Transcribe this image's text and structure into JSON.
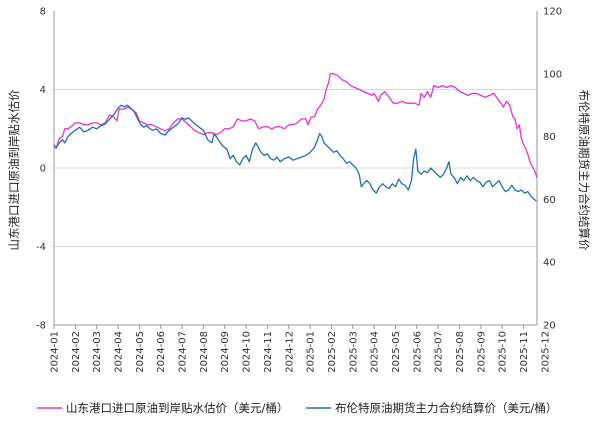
{
  "chart_data": {
    "type": "line",
    "title": "",
    "ylabel_left": "山东港口进口原油到岸贴水估价",
    "ylabel_right": "布伦特原油期货主力合约结算价",
    "ylim_left": [
      -8,
      8
    ],
    "yticks_left": [
      "-8",
      "-4",
      "0",
      "4",
      "8"
    ],
    "ylim_right": [
      20,
      120
    ],
    "yticks_right": [
      "20",
      "40",
      "60",
      "80",
      "100",
      "120"
    ],
    "xlim": [
      "2024-01",
      "2025-12.6"
    ],
    "xticks": [
      "2024-01",
      "2024-02",
      "2024-03",
      "2024-04",
      "2024-05",
      "2024-06",
      "2024-07",
      "2024-08",
      "2024-09",
      "2024-10",
      "2024-11",
      "2024-12",
      "2025-01",
      "2025-02",
      "2025-03",
      "2025-04",
      "2025-05",
      "2025-06",
      "2025-07",
      "2025-08",
      "2025-09",
      "2025-10",
      "2025-11",
      "2025-12"
    ],
    "grid": true,
    "legend_position": "bottom",
    "series": [
      {
        "name": "山东港口进口原油到岸贴水估价（美元/桶）",
        "axis": "left",
        "color": "#e933d8",
        "points": [
          [
            0.0,
            1.2
          ],
          [
            0.1,
            1.0
          ],
          [
            0.25,
            1.5
          ],
          [
            0.4,
            1.6
          ],
          [
            0.5,
            2.0
          ],
          [
            0.65,
            2.0
          ],
          [
            0.8,
            2.1
          ],
          [
            1.0,
            2.3
          ],
          [
            1.2,
            2.3
          ],
          [
            1.4,
            2.2
          ],
          [
            1.6,
            2.2
          ],
          [
            1.8,
            2.3
          ],
          [
            2.0,
            2.3
          ],
          [
            2.2,
            2.2
          ],
          [
            2.4,
            2.3
          ],
          [
            2.6,
            2.7
          ],
          [
            2.8,
            2.6
          ],
          [
            2.95,
            2.4
          ],
          [
            3.05,
            3.0
          ],
          [
            3.25,
            3.0
          ],
          [
            3.45,
            3.1
          ],
          [
            3.65,
            3.0
          ],
          [
            3.85,
            2.8
          ],
          [
            4.0,
            2.4
          ],
          [
            4.2,
            2.3
          ],
          [
            4.4,
            2.2
          ],
          [
            4.6,
            2.2
          ],
          [
            4.8,
            2.1
          ],
          [
            5.0,
            2.0
          ],
          [
            5.2,
            1.9
          ],
          [
            5.4,
            2.0
          ],
          [
            5.6,
            2.3
          ],
          [
            5.8,
            2.5
          ],
          [
            6.0,
            2.5
          ],
          [
            6.2,
            2.3
          ],
          [
            6.4,
            2.1
          ],
          [
            6.6,
            1.9
          ],
          [
            6.8,
            1.8
          ],
          [
            7.0,
            1.7
          ],
          [
            7.2,
            1.8
          ],
          [
            7.4,
            1.8
          ],
          [
            7.6,
            1.7
          ],
          [
            7.8,
            1.8
          ],
          [
            8.0,
            2.0
          ],
          [
            8.2,
            2.0
          ],
          [
            8.4,
            2.1
          ],
          [
            8.6,
            2.5
          ],
          [
            8.8,
            2.4
          ],
          [
            9.0,
            2.4
          ],
          [
            9.2,
            2.5
          ],
          [
            9.4,
            2.4
          ],
          [
            9.6,
            2.0
          ],
          [
            9.8,
            2.1
          ],
          [
            10.0,
            2.1
          ],
          [
            10.2,
            2.0
          ],
          [
            10.4,
            2.1
          ],
          [
            10.6,
            2.1
          ],
          [
            10.8,
            2.0
          ],
          [
            11.0,
            2.2
          ],
          [
            11.2,
            2.2
          ],
          [
            11.4,
            2.3
          ],
          [
            11.6,
            2.5
          ],
          [
            11.8,
            2.5
          ],
          [
            11.9,
            2.2
          ],
          [
            12.05,
            2.6
          ],
          [
            12.2,
            2.6
          ],
          [
            12.35,
            3.0
          ],
          [
            12.5,
            3.2
          ],
          [
            12.65,
            3.5
          ],
          [
            12.75,
            4.0
          ],
          [
            12.85,
            4.3
          ],
          [
            12.95,
            4.8
          ],
          [
            13.1,
            4.8
          ],
          [
            13.3,
            4.7
          ],
          [
            13.5,
            4.5
          ],
          [
            13.7,
            4.4
          ],
          [
            13.9,
            4.2
          ],
          [
            14.1,
            4.1
          ],
          [
            14.3,
            4.0
          ],
          [
            14.5,
            3.9
          ],
          [
            14.7,
            3.8
          ],
          [
            14.9,
            3.7
          ],
          [
            15.0,
            3.8
          ],
          [
            15.2,
            3.4
          ],
          [
            15.3,
            3.7
          ],
          [
            15.5,
            3.9
          ],
          [
            15.7,
            3.6
          ],
          [
            15.9,
            3.3
          ],
          [
            16.1,
            3.3
          ],
          [
            16.3,
            3.4
          ],
          [
            16.5,
            3.3
          ],
          [
            16.7,
            3.3
          ],
          [
            16.9,
            3.3
          ],
          [
            17.1,
            3.2
          ],
          [
            17.2,
            3.8
          ],
          [
            17.35,
            3.6
          ],
          [
            17.5,
            3.9
          ],
          [
            17.65,
            3.6
          ],
          [
            17.8,
            4.2
          ],
          [
            18.0,
            4.1
          ],
          [
            18.2,
            4.2
          ],
          [
            18.4,
            4.1
          ],
          [
            18.6,
            4.2
          ],
          [
            18.8,
            4.1
          ],
          [
            19.0,
            3.9
          ],
          [
            19.2,
            3.8
          ],
          [
            19.4,
            3.7
          ],
          [
            19.6,
            3.8
          ],
          [
            19.8,
            3.8
          ],
          [
            20.0,
            3.7
          ],
          [
            20.2,
            3.6
          ],
          [
            20.4,
            3.7
          ],
          [
            20.6,
            3.8
          ],
          [
            20.8,
            3.5
          ],
          [
            20.95,
            3.3
          ],
          [
            21.05,
            3.1
          ],
          [
            21.2,
            3.4
          ],
          [
            21.35,
            3.2
          ],
          [
            21.5,
            2.6
          ],
          [
            21.6,
            2.5
          ],
          [
            21.7,
            2.0
          ],
          [
            21.8,
            2.2
          ],
          [
            21.9,
            1.5
          ],
          [
            22.0,
            1.2
          ],
          [
            22.1,
            1.0
          ],
          [
            22.2,
            0.7
          ],
          [
            22.3,
            0.3
          ],
          [
            22.4,
            0.1
          ],
          [
            22.5,
            -0.1
          ],
          [
            22.58,
            -0.3
          ],
          [
            22.63,
            -0.5
          ]
        ]
      },
      {
        "name": "布伦特原油期货主力合约结算价（美元/桶）",
        "axis": "right",
        "color": "#1f6fc6",
        "points": [
          [
            0.0,
            77
          ],
          [
            0.1,
            76.5
          ],
          [
            0.25,
            78
          ],
          [
            0.4,
            79
          ],
          [
            0.5,
            78
          ],
          [
            0.65,
            80
          ],
          [
            0.8,
            81
          ],
          [
            1.0,
            82
          ],
          [
            1.2,
            83
          ],
          [
            1.4,
            81.5
          ],
          [
            1.6,
            82
          ],
          [
            1.8,
            83
          ],
          [
            2.0,
            82.5
          ],
          [
            2.2,
            83.5
          ],
          [
            2.4,
            84
          ],
          [
            2.6,
            85.5
          ],
          [
            2.8,
            87
          ],
          [
            3.0,
            89
          ],
          [
            3.15,
            90
          ],
          [
            3.3,
            89.5
          ],
          [
            3.45,
            90
          ],
          [
            3.6,
            89
          ],
          [
            3.75,
            88
          ],
          [
            3.9,
            86
          ],
          [
            4.05,
            84
          ],
          [
            4.2,
            83
          ],
          [
            4.35,
            83.5
          ],
          [
            4.5,
            82.5
          ],
          [
            4.65,
            82
          ],
          [
            4.8,
            82.5
          ],
          [
            5.0,
            81
          ],
          [
            5.2,
            80.5
          ],
          [
            5.4,
            82
          ],
          [
            5.6,
            83
          ],
          [
            5.8,
            84
          ],
          [
            6.0,
            86
          ],
          [
            6.15,
            85.5
          ],
          [
            6.3,
            86
          ],
          [
            6.45,
            85
          ],
          [
            6.6,
            84
          ],
          [
            6.8,
            83
          ],
          [
            7.0,
            82
          ],
          [
            7.2,
            79
          ],
          [
            7.4,
            78
          ],
          [
            7.5,
            81
          ],
          [
            7.7,
            79
          ],
          [
            7.9,
            77
          ],
          [
            8.1,
            76
          ],
          [
            8.25,
            73
          ],
          [
            8.4,
            74
          ],
          [
            8.55,
            72
          ],
          [
            8.7,
            71
          ],
          [
            8.85,
            73
          ],
          [
            9.0,
            74
          ],
          [
            9.15,
            72
          ],
          [
            9.3,
            76
          ],
          [
            9.45,
            78
          ],
          [
            9.55,
            77
          ],
          [
            9.7,
            75
          ],
          [
            9.85,
            74
          ],
          [
            10.0,
            74.5
          ],
          [
            10.15,
            73
          ],
          [
            10.3,
            72.5
          ],
          [
            10.45,
            73.5
          ],
          [
            10.6,
            72
          ],
          [
            10.8,
            73
          ],
          [
            11.0,
            73.5
          ],
          [
            11.2,
            72.5
          ],
          [
            11.4,
            73
          ],
          [
            11.6,
            73.5
          ],
          [
            11.8,
            74
          ],
          [
            12.0,
            75
          ],
          [
            12.2,
            76.5
          ],
          [
            12.35,
            79
          ],
          [
            12.45,
            81
          ],
          [
            12.55,
            80
          ],
          [
            12.65,
            78
          ],
          [
            12.8,
            77
          ],
          [
            12.95,
            76
          ],
          [
            13.1,
            75
          ],
          [
            13.25,
            75.5
          ],
          [
            13.4,
            74
          ],
          [
            13.55,
            73
          ],
          [
            13.7,
            71.5
          ],
          [
            13.85,
            72
          ],
          [
            14.0,
            71
          ],
          [
            14.15,
            70
          ],
          [
            14.3,
            68
          ],
          [
            14.4,
            64
          ],
          [
            14.5,
            65
          ],
          [
            14.65,
            66
          ],
          [
            14.8,
            65
          ],
          [
            14.95,
            63
          ],
          [
            15.1,
            62
          ],
          [
            15.25,
            64
          ],
          [
            15.4,
            65
          ],
          [
            15.55,
            64
          ],
          [
            15.7,
            63.5
          ],
          [
            15.85,
            65
          ],
          [
            16.0,
            64
          ],
          [
            16.15,
            66.5
          ],
          [
            16.3,
            65
          ],
          [
            16.45,
            64.5
          ],
          [
            16.6,
            63
          ],
          [
            16.75,
            66
          ],
          [
            16.85,
            73
          ],
          [
            16.95,
            76
          ],
          [
            17.05,
            69
          ],
          [
            17.2,
            68
          ],
          [
            17.35,
            69
          ],
          [
            17.5,
            68.5
          ],
          [
            17.65,
            70
          ],
          [
            17.8,
            69
          ],
          [
            17.95,
            68
          ],
          [
            18.1,
            67
          ],
          [
            18.25,
            68
          ],
          [
            18.4,
            70
          ],
          [
            18.5,
            72
          ],
          [
            18.6,
            68
          ],
          [
            18.75,
            67
          ],
          [
            18.9,
            65
          ],
          [
            19.05,
            67
          ],
          [
            19.2,
            66
          ],
          [
            19.35,
            67.5
          ],
          [
            19.5,
            66
          ],
          [
            19.65,
            67
          ],
          [
            19.8,
            66
          ],
          [
            19.95,
            65.5
          ],
          [
            20.1,
            64
          ],
          [
            20.25,
            65.5
          ],
          [
            20.4,
            66
          ],
          [
            20.55,
            64
          ],
          [
            20.7,
            65
          ],
          [
            20.85,
            66
          ],
          [
            21.0,
            64
          ],
          [
            21.15,
            62.5
          ],
          [
            21.3,
            63
          ],
          [
            21.45,
            64.5
          ],
          [
            21.6,
            63
          ],
          [
            21.75,
            62.5
          ],
          [
            21.9,
            63
          ],
          [
            22.05,
            62
          ],
          [
            22.2,
            62.5
          ],
          [
            22.35,
            61
          ],
          [
            22.5,
            60
          ],
          [
            22.6,
            59.5
          ]
        ]
      }
    ]
  }
}
